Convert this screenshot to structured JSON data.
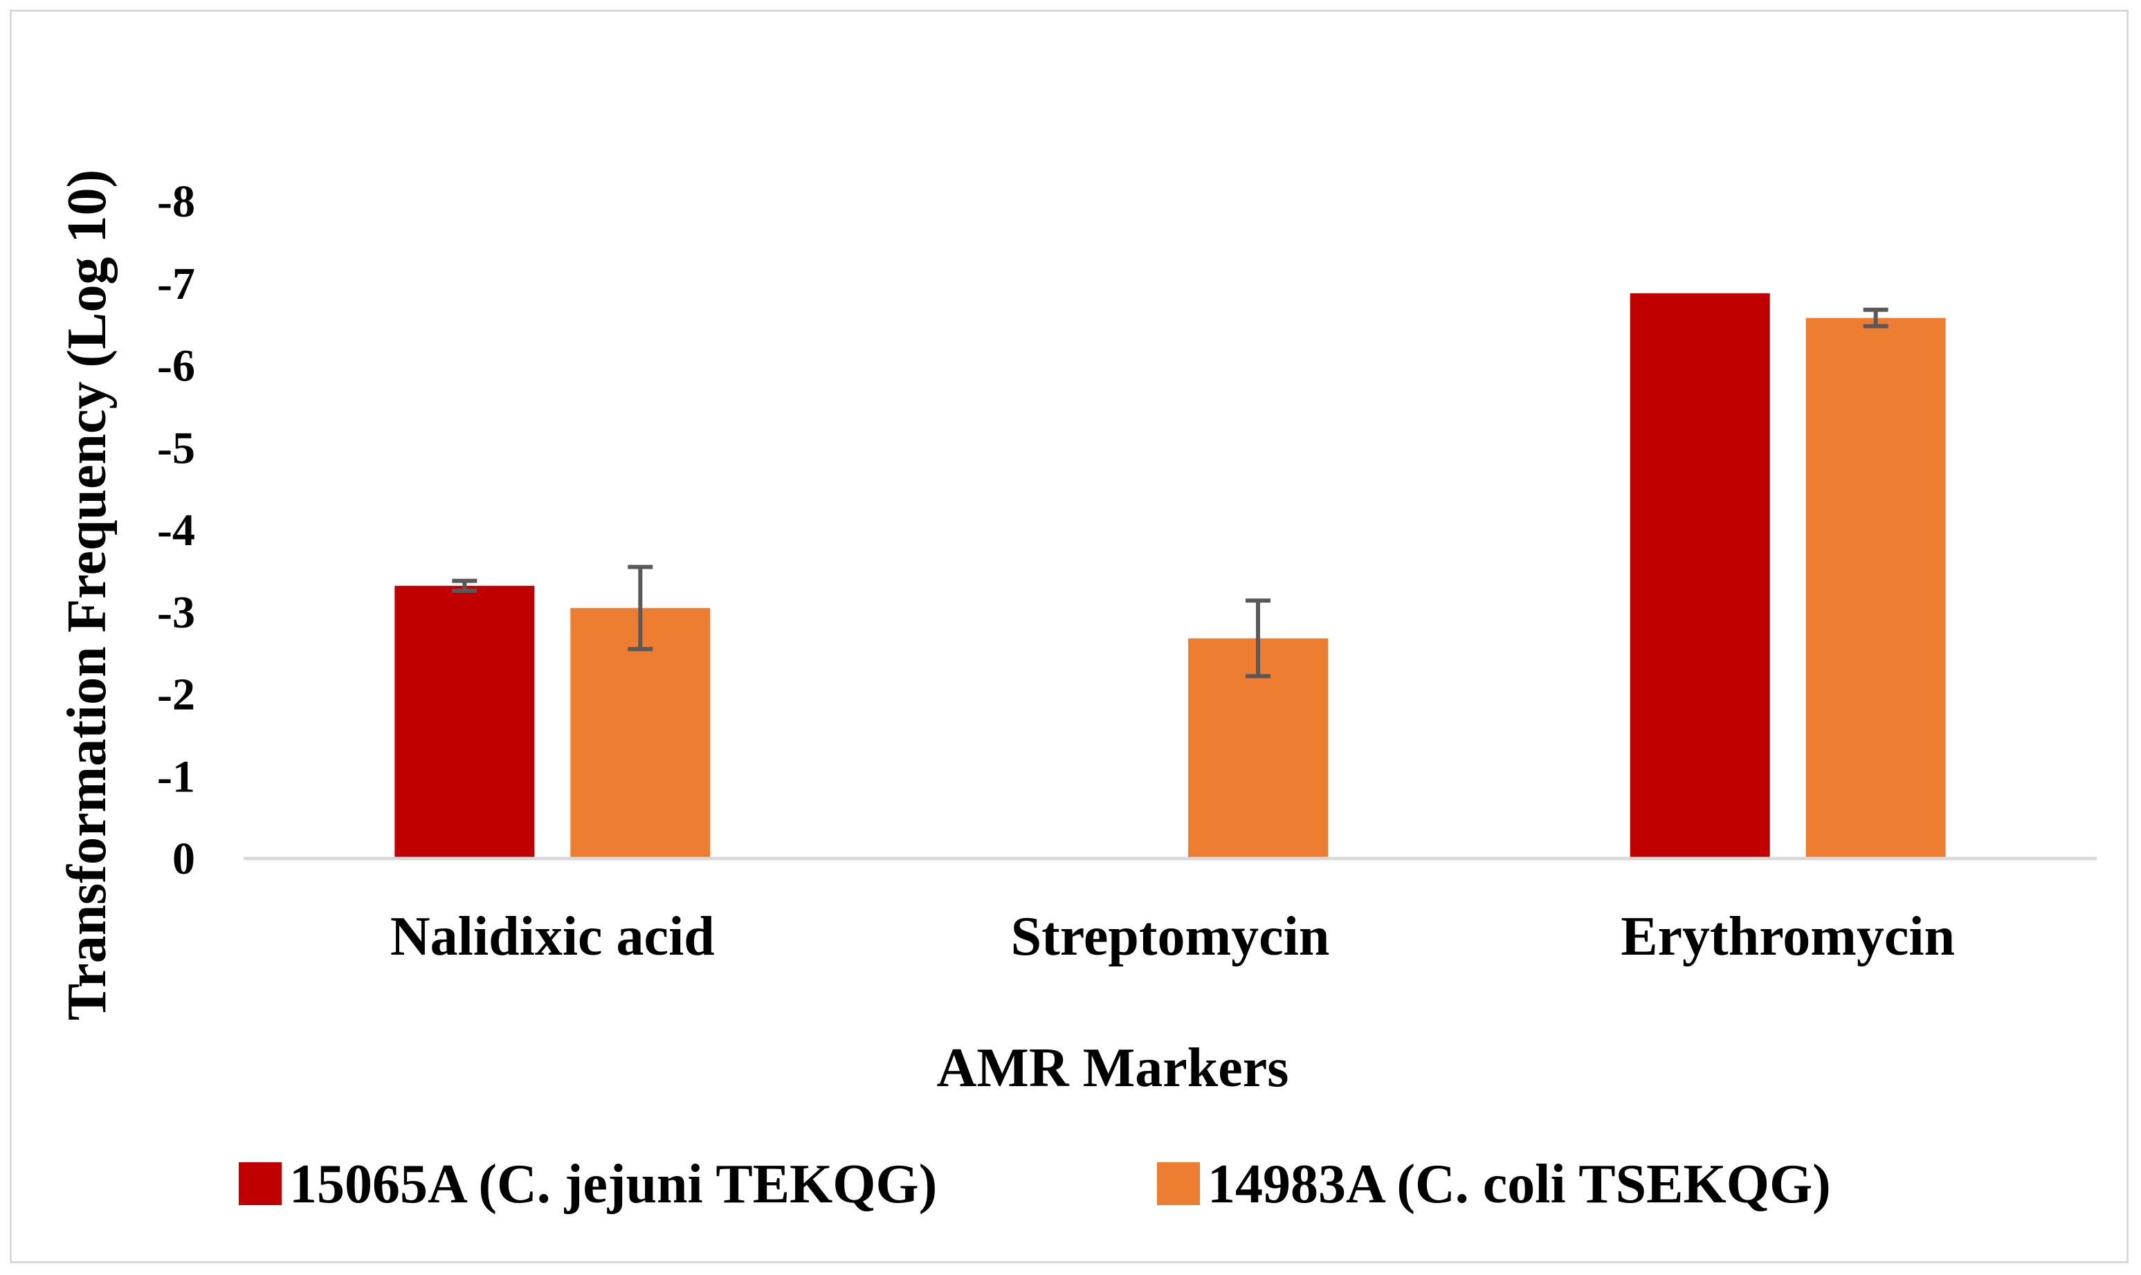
{
  "chart_data": {
    "type": "bar",
    "title": "",
    "xlabel": "AMR Markers",
    "ylabel": "Transformation Frequency (Log 10)",
    "categories": [
      "Nalidixic acid",
      "Streptomycin",
      "Erythromycin"
    ],
    "ylim": [
      0,
      8
    ],
    "y_ticks": [
      0,
      1,
      2,
      3,
      4,
      5,
      6,
      7,
      8
    ],
    "y_tick_labels": [
      "0",
      "-1",
      "-2",
      "-3",
      "-4",
      "-5",
      "-6",
      "-7",
      "-8"
    ],
    "grid": false,
    "legend_position": "bottom",
    "series": [
      {
        "name": "15065A (C. jejuni TEKQG)",
        "color": "#c00000",
        "values": [
          3.32,
          null,
          6.88
        ],
        "errors": [
          0.06,
          null,
          0
        ]
      },
      {
        "name": "14983A (C. coli TSEKQG)",
        "color": "#ed7d31",
        "values": [
          3.05,
          2.68,
          6.58
        ],
        "errors": [
          0.5,
          0.46,
          0.1
        ]
      }
    ]
  }
}
